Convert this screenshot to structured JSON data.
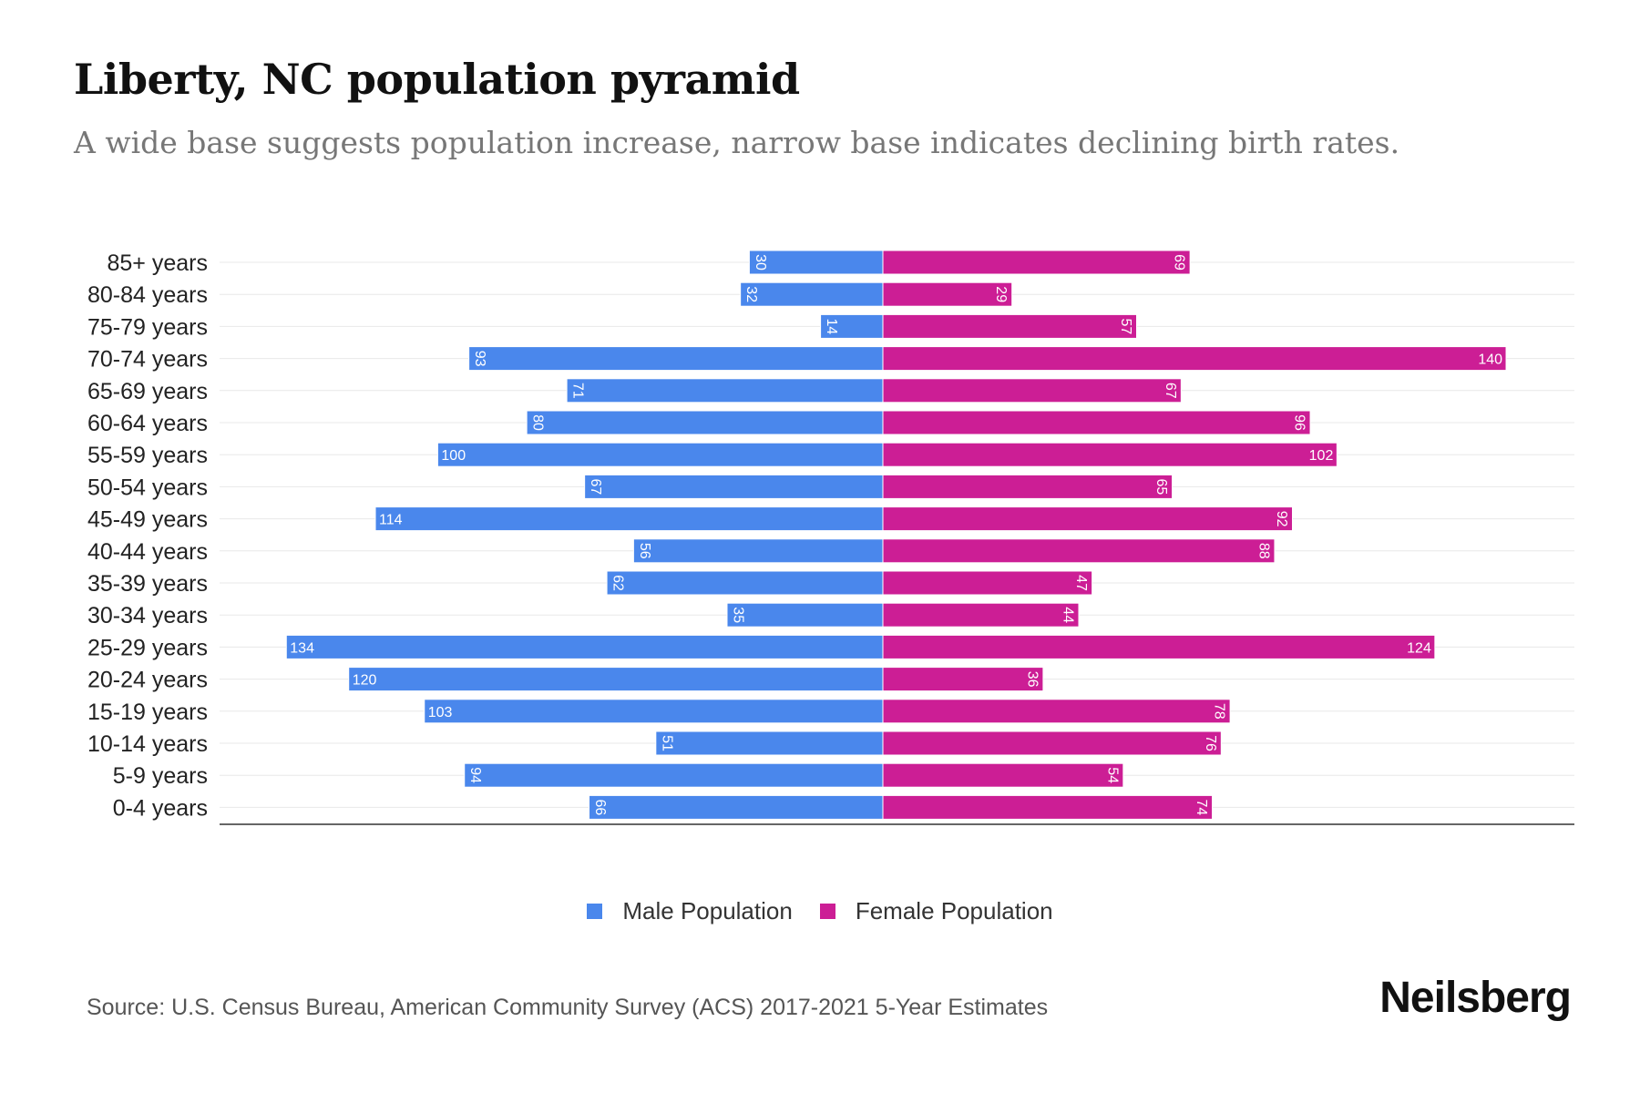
{
  "brand": "Neilsberg",
  "source": "Source: U.S. Census Bureau, American Community Survey (ACS) 2017-2021 5-Year Estimates",
  "colors": {
    "male": "#4a87ec",
    "female": "#cc1e95",
    "grid": "#e8e8e8",
    "axis": "#333333"
  },
  "chart_data": {
    "type": "bar",
    "orientation": "horizontal-diverging",
    "title": "Liberty, NC population pyramid",
    "subtitle": "A wide base suggests population increase, narrow base indicates declining birth rates.",
    "categories": [
      "85+ years",
      "80-84 years",
      "75-79 years",
      "70-74 years",
      "65-69 years",
      "60-64 years",
      "55-59 years",
      "50-54 years",
      "45-49 years",
      "40-44 years",
      "35-39 years",
      "30-34 years",
      "25-29 years",
      "20-24 years",
      "15-19 years",
      "10-14 years",
      "5-9 years",
      "0-4 years"
    ],
    "series": [
      {
        "name": "Male Population",
        "values": [
          30,
          32,
          14,
          93,
          71,
          80,
          100,
          67,
          114,
          56,
          62,
          35,
          134,
          120,
          103,
          51,
          94,
          66
        ]
      },
      {
        "name": "Female Population",
        "values": [
          69,
          29,
          57,
          140,
          67,
          96,
          102,
          65,
          92,
          88,
          47,
          44,
          124,
          36,
          78,
          76,
          54,
          74
        ]
      }
    ],
    "legend": [
      "Male Population",
      "Female Population"
    ],
    "legend_position": "bottom",
    "xlim": [
      -149,
      156
    ],
    "grid": true
  }
}
